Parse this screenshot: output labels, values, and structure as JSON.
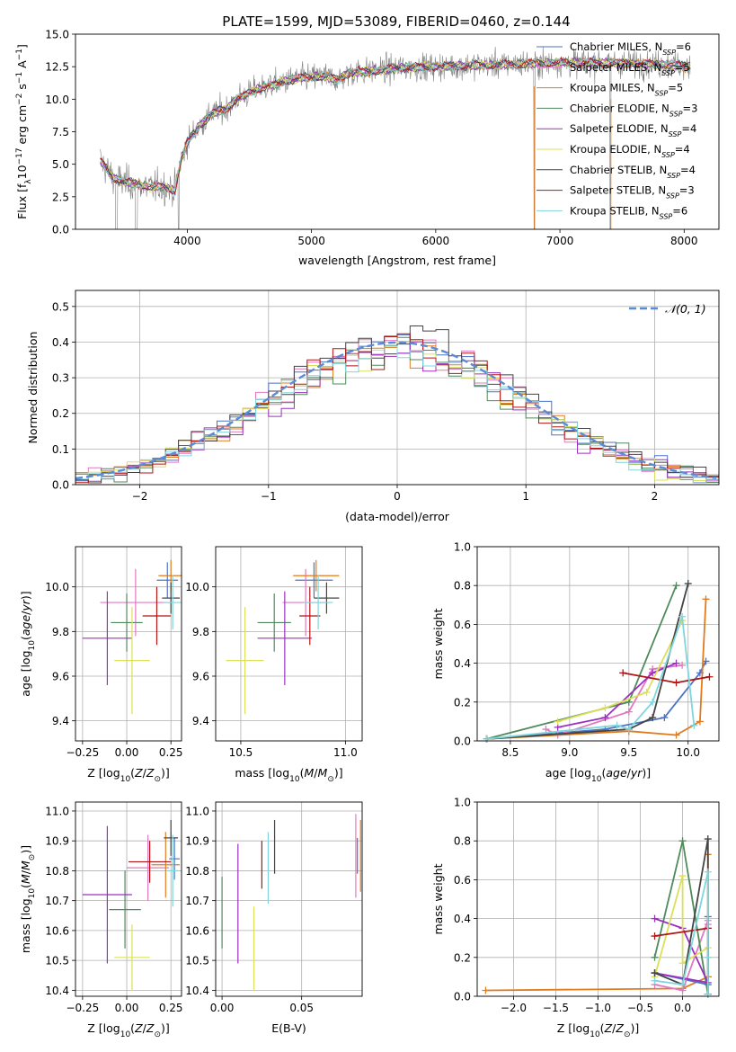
{
  "title": "PLATE=1599, MJD=53089, FIBERID=0460, z=0.144",
  "palette": {
    "Chabrier MILES": "#4c72c8",
    "Salpeter MILES": "#e377c2",
    "Kroupa MILES": "#e07c1e",
    "Chabrier ELODIE": "#4f8a5b",
    "Salpeter ELODIE": "#9b30c0",
    "Kroupa ELODIE": "#dbe05a",
    "Chabrier STELIB": "#444444",
    "Salpeter STELIB": "#b01515",
    "Kroupa STELIB": "#7fd6dc",
    "data": "#808080",
    "normal": "#5b8bd4"
  },
  "chart_data": [
    {
      "id": "spectrum",
      "type": "line",
      "xlabel": "wavelength [Angstrom, rest frame]",
      "ylabel": "Flux [f_λ10^-17 erg cm^-2 s^-1 A^-1]",
      "xlim": [
        3100,
        8280
      ],
      "ylim": [
        0,
        15
      ],
      "xticks": [
        4000,
        5000,
        6000,
        7000,
        8000
      ],
      "yticks": [
        0.0,
        2.5,
        5.0,
        7.5,
        10.0,
        12.5,
        15.0
      ],
      "legend_position": "top-right",
      "legend": [
        {
          "model": "Chabrier MILES",
          "label": "Chabrier MILES, N_SSP=6"
        },
        {
          "model": "Salpeter MILES",
          "label": "Salpeter MILES, N_SSP=5"
        },
        {
          "model": "Kroupa MILES",
          "label": "Kroupa MILES, N_SSP=5"
        },
        {
          "model": "Chabrier ELODIE",
          "label": "Chabrier ELODIE, N_SSP=3"
        },
        {
          "model": "Salpeter ELODIE",
          "label": "Salpeter ELODIE, N_SSP=4"
        },
        {
          "model": "Kroupa ELODIE",
          "label": "Kroupa ELODIE, N_SSP=4"
        },
        {
          "model": "Chabrier STELIB",
          "label": "Chabrier STELIB, N_SSP=4"
        },
        {
          "model": "Salpeter STELIB",
          "label": "Salpeter STELIB, N_SSP=3"
        },
        {
          "model": "Kroupa STELIB",
          "label": "Kroupa STELIB, N_SSP=6"
        }
      ],
      "continuum": [
        [
          3300,
          5.3
        ],
        [
          3400,
          4.0
        ],
        [
          3500,
          3.6
        ],
        [
          3600,
          3.5
        ],
        [
          3700,
          3.2
        ],
        [
          3800,
          3.3
        ],
        [
          3900,
          3.0
        ],
        [
          3950,
          5.3
        ],
        [
          4000,
          6.7
        ],
        [
          4100,
          8.0
        ],
        [
          4200,
          8.9
        ],
        [
          4300,
          9.2
        ],
        [
          4400,
          10.0
        ],
        [
          4500,
          10.5
        ],
        [
          4600,
          10.9
        ],
        [
          4700,
          11.1
        ],
        [
          4800,
          11.4
        ],
        [
          4900,
          11.6
        ],
        [
          5000,
          11.7
        ],
        [
          5100,
          11.8
        ],
        [
          5200,
          11.5
        ],
        [
          5300,
          12.0
        ],
        [
          5500,
          12.2
        ],
        [
          5700,
          12.4
        ],
        [
          6000,
          12.5
        ],
        [
          6300,
          12.6
        ],
        [
          6600,
          12.7
        ],
        [
          7000,
          12.8
        ],
        [
          7400,
          12.8
        ],
        [
          7800,
          12.7
        ],
        [
          8050,
          12.5
        ]
      ]
    },
    {
      "id": "residuals",
      "type": "histogram",
      "xlabel": "(data-model)/error",
      "ylabel": "Normed distribution",
      "xlim": [
        -2.5,
        2.5
      ],
      "ylim": [
        0,
        0.545
      ],
      "xticks": [
        -2,
        -1,
        0,
        1,
        2
      ],
      "yticks": [
        0.0,
        0.1,
        0.2,
        0.3,
        0.4,
        0.5
      ],
      "grid": true,
      "legend_position": "top-right",
      "reference_label": "𝒩(0, 1)",
      "bin_width": 0.1
    },
    {
      "id": "age_vs_Z",
      "type": "errorbar",
      "xlabel": "Z [log10(Z/Z⊙)]",
      "ylabel": "age [log10(age/yr)]",
      "xlim": [
        -0.29,
        0.31
      ],
      "ylim": [
        9.31,
        10.18
      ],
      "xticks": [
        -0.25,
        0.0,
        0.25
      ],
      "yticks": [
        9.4,
        9.6,
        9.8,
        10.0
      ],
      "grid": true,
      "points": [
        {
          "model": "Chabrier MILES",
          "x": 0.23,
          "xerr": 0.06,
          "y": 10.03,
          "yerr": 0.08
        },
        {
          "model": "Salpeter MILES",
          "x": 0.05,
          "xerr": 0.2,
          "y": 9.93,
          "yerr": 0.15
        },
        {
          "model": "Kroupa MILES",
          "x": 0.25,
          "xerr": 0.07,
          "y": 10.05,
          "yerr": 0.07
        },
        {
          "model": "Chabrier ELODIE",
          "x": 0.0,
          "xerr": 0.09,
          "y": 9.84,
          "yerr": 0.13
        },
        {
          "model": "Salpeter ELODIE",
          "x": -0.11,
          "xerr": 0.14,
          "y": 9.77,
          "yerr": 0.21
        },
        {
          "model": "Kroupa ELODIE",
          "x": 0.03,
          "xerr": 0.1,
          "y": 9.67,
          "yerr": 0.24
        },
        {
          "model": "Chabrier STELIB",
          "x": 0.25,
          "xerr": 0.05,
          "y": 9.95,
          "yerr": 0.07
        },
        {
          "model": "Salpeter STELIB",
          "x": 0.17,
          "xerr": 0.08,
          "y": 9.87,
          "yerr": 0.13
        },
        {
          "model": "Kroupa STELIB",
          "x": 0.26,
          "xerr": 0.05,
          "y": 9.93,
          "yerr": 0.12
        }
      ]
    },
    {
      "id": "age_vs_mass",
      "type": "errorbar",
      "xlabel": "mass [log10(M/M⊙)]",
      "ylabel": "",
      "xlim": [
        10.38,
        11.08
      ],
      "ylim": [
        9.31,
        10.18
      ],
      "xticks": [
        10.5,
        11.0
      ],
      "yticks": [
        9.4,
        9.6,
        9.8,
        10.0
      ],
      "grid": true,
      "points": [
        {
          "model": "Chabrier MILES",
          "x": 10.85,
          "xerr": 0.09,
          "y": 10.03,
          "yerr": 0.08
        },
        {
          "model": "Salpeter MILES",
          "x": 10.81,
          "xerr": 0.11,
          "y": 9.93,
          "yerr": 0.15
        },
        {
          "model": "Kroupa MILES",
          "x": 10.86,
          "xerr": 0.11,
          "y": 10.05,
          "yerr": 0.07
        },
        {
          "model": "Chabrier ELODIE",
          "x": 10.66,
          "xerr": 0.08,
          "y": 9.84,
          "yerr": 0.13
        },
        {
          "model": "Salpeter ELODIE",
          "x": 10.71,
          "xerr": 0.13,
          "y": 9.77,
          "yerr": 0.21
        },
        {
          "model": "Kroupa ELODIE",
          "x": 10.52,
          "xerr": 0.09,
          "y": 9.67,
          "yerr": 0.24
        },
        {
          "model": "Chabrier STELIB",
          "x": 10.91,
          "xerr": 0.06,
          "y": 9.95,
          "yerr": 0.07
        },
        {
          "model": "Salpeter STELIB",
          "x": 10.83,
          "xerr": 0.05,
          "y": 9.87,
          "yerr": 0.13
        },
        {
          "model": "Kroupa STELIB",
          "x": 10.87,
          "xerr": 0.07,
          "y": 9.93,
          "yerr": 0.12
        }
      ]
    },
    {
      "id": "weight_vs_age",
      "type": "line",
      "xlabel": "age [log10(age/yr)]",
      "ylabel": "mass weight",
      "xlim": [
        8.22,
        10.26
      ],
      "ylim": [
        0,
        1.0
      ],
      "xticks": [
        8.5,
        9.0,
        9.5,
        10.0
      ],
      "yticks": [
        0.0,
        0.2,
        0.4,
        0.6,
        0.8,
        1.0
      ],
      "grid": true,
      "series": [
        {
          "model": "Chabrier MILES",
          "x": [
            8.3,
            9.3,
            9.8,
            10.1,
            10.15
          ],
          "y": [
            0.01,
            0.06,
            0.12,
            0.35,
            0.41
          ]
        },
        {
          "model": "Salpeter MILES",
          "x": [
            8.8,
            8.9,
            9.5,
            9.7,
            9.95
          ],
          "y": [
            0.06,
            0.03,
            0.15,
            0.37,
            0.39
          ]
        },
        {
          "model": "Kroupa MILES",
          "x": [
            8.3,
            9.5,
            9.9,
            10.1,
            10.15
          ],
          "y": [
            0.01,
            0.05,
            0.03,
            0.1,
            0.73
          ]
        },
        {
          "model": "Chabrier ELODIE",
          "x": [
            8.3,
            9.5,
            9.9
          ],
          "y": [
            0.01,
            0.2,
            0.8
          ]
        },
        {
          "model": "Salpeter ELODIE",
          "x": [
            8.9,
            9.3,
            9.7,
            9.9
          ],
          "y": [
            0.07,
            0.12,
            0.35,
            0.4
          ]
        },
        {
          "model": "Kroupa ELODIE",
          "x": [
            8.9,
            9.3,
            9.65,
            9.95
          ],
          "y": [
            0.1,
            0.17,
            0.25,
            0.62
          ]
        },
        {
          "model": "Chabrier STELIB",
          "x": [
            8.3,
            9.5,
            9.7,
            10.0
          ],
          "y": [
            0.01,
            0.06,
            0.12,
            0.81
          ]
        },
        {
          "model": "Salpeter STELIB",
          "x": [
            9.45,
            9.9,
            10.18
          ],
          "y": [
            0.35,
            0.3,
            0.33
          ]
        },
        {
          "model": "Kroupa STELIB",
          "x": [
            8.3,
            9.4,
            9.5,
            9.7,
            9.95,
            10.05
          ],
          "y": [
            0.01,
            0.08,
            0.06,
            0.2,
            0.64,
            0.08
          ]
        }
      ]
    },
    {
      "id": "mass_vs_Z",
      "type": "errorbar",
      "xlabel": "Z [log10(Z/Z⊙)]",
      "ylabel": "mass [log10(M/M⊙)]",
      "xlim": [
        -0.29,
        0.31
      ],
      "ylim": [
        10.38,
        11.03
      ],
      "xticks": [
        -0.25,
        0.0,
        0.25
      ],
      "yticks": [
        10.4,
        10.5,
        10.6,
        10.7,
        10.8,
        10.9,
        11.0
      ],
      "grid": true,
      "points": [
        {
          "model": "Chabrier MILES",
          "x": 0.27,
          "xerr": 0.03,
          "y": 10.84,
          "yerr": 0.07
        },
        {
          "model": "Salpeter MILES",
          "x": 0.12,
          "xerr": 0.12,
          "y": 10.81,
          "yerr": 0.11
        },
        {
          "model": "Kroupa MILES",
          "x": 0.22,
          "xerr": 0.08,
          "y": 10.82,
          "yerr": 0.11
        },
        {
          "model": "Chabrier ELODIE",
          "x": -0.01,
          "xerr": 0.09,
          "y": 10.67,
          "yerr": 0.13
        },
        {
          "model": "Salpeter ELODIE",
          "x": -0.11,
          "xerr": 0.14,
          "y": 10.72,
          "yerr": 0.23
        },
        {
          "model": "Kroupa ELODIE",
          "x": 0.03,
          "xerr": 0.1,
          "y": 10.51,
          "yerr": 0.11
        },
        {
          "model": "Chabrier STELIB",
          "x": 0.25,
          "xerr": 0.04,
          "y": 10.91,
          "yerr": 0.06
        },
        {
          "model": "Salpeter STELIB",
          "x": 0.13,
          "xerr": 0.12,
          "y": 10.83,
          "yerr": 0.07
        },
        {
          "model": "Kroupa STELIB",
          "x": 0.26,
          "xerr": 0.03,
          "y": 10.8,
          "yerr": 0.12
        }
      ]
    },
    {
      "id": "mass_vs_EBV",
      "type": "errorbar",
      "xlabel": "E(B-V)",
      "ylabel": "",
      "xlim": [
        -0.004,
        0.088
      ],
      "ylim": [
        10.38,
        11.03
      ],
      "xticks": [
        0.0,
        0.05
      ],
      "yticks": [
        10.4,
        10.5,
        10.6,
        10.7,
        10.8,
        10.9,
        11.0
      ],
      "grid": true,
      "points": [
        {
          "model": "Chabrier MILES",
          "x": 0.085,
          "xerr": 0,
          "y": 10.85,
          "yerr": 0.06
        },
        {
          "model": "Salpeter MILES",
          "x": 0.084,
          "xerr": 0,
          "y": 10.85,
          "yerr": 0.14
        },
        {
          "model": "Kroupa MILES",
          "x": 0.087,
          "xerr": 0,
          "y": 10.85,
          "yerr": 0.12
        },
        {
          "model": "Chabrier ELODIE",
          "x": 0.0,
          "xerr": 0,
          "y": 10.66,
          "yerr": 0.12
        },
        {
          "model": "Salpeter ELODIE",
          "x": 0.01,
          "xerr": 0,
          "y": 10.69,
          "yerr": 0.2
        },
        {
          "model": "Kroupa ELODIE",
          "x": 0.02,
          "xerr": 0,
          "y": 10.54,
          "yerr": 0.14
        },
        {
          "model": "Chabrier STELIB",
          "x": 0.033,
          "xerr": 0,
          "y": 10.88,
          "yerr": 0.09
        },
        {
          "model": "Salpeter STELIB",
          "x": 0.025,
          "xerr": 0,
          "y": 10.82,
          "yerr": 0.08
        },
        {
          "model": "Kroupa STELIB",
          "x": 0.029,
          "xerr": 0,
          "y": 10.81,
          "yerr": 0.12
        }
      ]
    },
    {
      "id": "weight_vs_Z",
      "type": "line",
      "xlabel": "Z [log10(Z/Z⊙)]",
      "ylabel": "mass weight",
      "xlim": [
        -2.43,
        0.43
      ],
      "ylim": [
        0,
        1.0
      ],
      "xticks": [
        -2.0,
        -1.5,
        -1.0,
        -0.5,
        0.0
      ],
      "yticks": [
        0.0,
        0.2,
        0.4,
        0.6,
        0.8,
        1.0
      ],
      "grid": true,
      "series": [
        {
          "model": "Kroupa MILES",
          "x": [
            -2.33,
            0.0,
            0.3,
            0.3,
            0.3
          ],
          "y": [
            0.03,
            0.04,
            0.1,
            0.73,
            0.1
          ]
        },
        {
          "model": "Chabrier MILES",
          "x": [
            -0.33,
            0.3,
            0.3,
            0.3,
            0.3
          ],
          "y": [
            0.12,
            0.06,
            0.41,
            0.35,
            0.01
          ]
        },
        {
          "model": "Salpeter MILES",
          "x": [
            -0.33,
            0.0,
            0.3,
            0.3
          ],
          "y": [
            0.06,
            0.03,
            0.39,
            0.37
          ]
        },
        {
          "model": "Chabrier ELODIE",
          "x": [
            -0.33,
            0.0,
            0.3
          ],
          "y": [
            0.2,
            0.8,
            0.01
          ]
        },
        {
          "model": "Salpeter ELODIE",
          "x": [
            -0.33,
            0.0,
            0.3,
            -0.33
          ],
          "y": [
            0.4,
            0.35,
            0.07,
            0.12
          ]
        },
        {
          "model": "Kroupa ELODIE",
          "x": [
            -0.33,
            0.0,
            0.0,
            0.3
          ],
          "y": [
            0.1,
            0.62,
            0.17,
            0.25
          ]
        },
        {
          "model": "Chabrier STELIB",
          "x": [
            -0.33,
            0.0,
            0.3,
            0.3
          ],
          "y": [
            0.12,
            0.06,
            0.81,
            0.01
          ]
        },
        {
          "model": "Salpeter STELIB",
          "x": [
            -0.33,
            0.3
          ],
          "y": [
            0.31,
            0.35
          ]
        },
        {
          "model": "Kroupa STELIB",
          "x": [
            -0.33,
            0.0,
            0.3,
            0.3,
            0.3
          ],
          "y": [
            0.08,
            0.06,
            0.64,
            0.2,
            0.01
          ]
        }
      ]
    }
  ]
}
